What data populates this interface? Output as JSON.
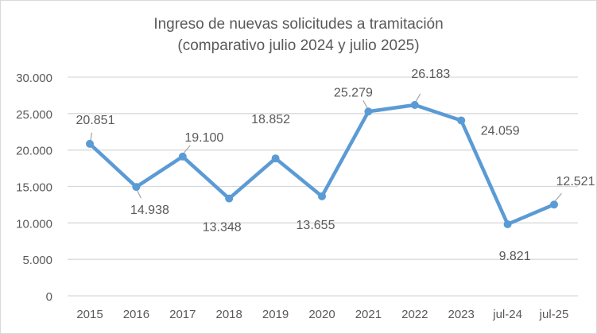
{
  "chart_data": {
    "type": "line",
    "title": [
      "Ingreso de nuevas solicitudes a tramitación",
      "(comparativo julio 2024 y julio 2025)"
    ],
    "categories": [
      "2015",
      "2016",
      "2017",
      "2018",
      "2019",
      "2020",
      "2021",
      "2022",
      "2023",
      "jul-24",
      "jul-25"
    ],
    "values": [
      20851,
      14938,
      19100,
      13348,
      18852,
      13655,
      25279,
      26183,
      24059,
      9821,
      12521
    ],
    "data_labels": [
      "20.851",
      "14.938",
      "19.100",
      "13.348",
      "18.852",
      "13.655",
      "25.279",
      "26.183",
      "24.059",
      "9.821",
      "12.521"
    ],
    "ylim": [
      0,
      30000
    ],
    "yticks": [
      0,
      5000,
      10000,
      15000,
      20000,
      25000,
      30000
    ],
    "ytick_labels": [
      "0",
      "5.000",
      "10.000",
      "15.000",
      "20.000",
      "25.000",
      "30.000"
    ],
    "xlabel": "",
    "ylabel": "",
    "grid": true,
    "legend": "none",
    "line_color": "#5b9bd5",
    "grid_color": "#d9d9d9"
  }
}
